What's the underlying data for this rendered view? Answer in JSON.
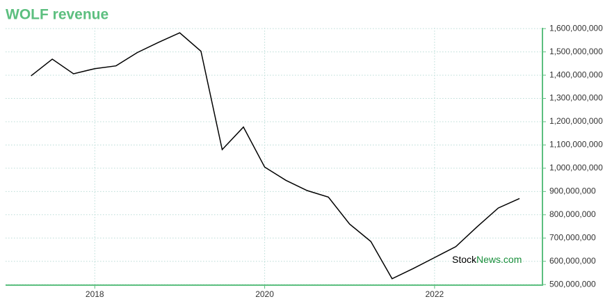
{
  "chart_data": {
    "type": "line",
    "title": "WOLF revenue",
    "x": [
      2017.25,
      2017.5,
      2017.75,
      2018,
      2018.25,
      2018.5,
      2018.75,
      2019,
      2019.25,
      2019.5,
      2019.75,
      2020,
      2020.25,
      2020.5,
      2020.75,
      2021,
      2021.25,
      2021.5,
      2021.75,
      2022,
      2022.25,
      2022.5,
      2022.75,
      2023
    ],
    "series": [
      {
        "name": "WOLF revenue",
        "color": "#000000",
        "values": [
          1397000000,
          1469000000,
          1406000000,
          1428000000,
          1440000000,
          1497000000,
          1541000000,
          1582000000,
          1503000000,
          1080000000,
          1177000000,
          1005000000,
          948000000,
          904000000,
          876000000,
          760000000,
          685000000,
          525000000,
          569000000,
          616000000,
          663000000,
          748000000,
          829000000,
          870000000
        ]
      }
    ],
    "xlim": [
      2016.95,
      2023.27
    ],
    "xticks": [
      2018,
      2020,
      2022
    ],
    "ylim": [
      497500000,
      1603500000
    ],
    "yticks": [
      {
        "value": 500000000,
        "label": "500,000,000"
      },
      {
        "value": 600000000,
        "label": "600,000,000"
      },
      {
        "value": 700000000,
        "label": "700,000,000"
      },
      {
        "value": 800000000,
        "label": "800,000,000"
      },
      {
        "value": 900000000,
        "label": "900,000,000"
      },
      {
        "value": 1000000000,
        "label": "1,000,000,000"
      },
      {
        "value": 1100000000,
        "label": "1,100,000,000"
      },
      {
        "value": 1200000000,
        "label": "1,200,000,000"
      },
      {
        "value": 1300000000,
        "label": "1,300,000,000"
      },
      {
        "value": 1400000000,
        "label": "1,400,000,000"
      },
      {
        "value": 1500000000,
        "label": "1,500,000,000"
      },
      {
        "value": 1600000000,
        "label": "1,600,000,000"
      }
    ],
    "grid": true,
    "axis_color": "#5cbf7f",
    "watermark": [
      "Stock",
      "News",
      ".com"
    ],
    "watermark_colors": [
      "#000000",
      "#1a8f3c",
      "#1a8f3c"
    ]
  }
}
